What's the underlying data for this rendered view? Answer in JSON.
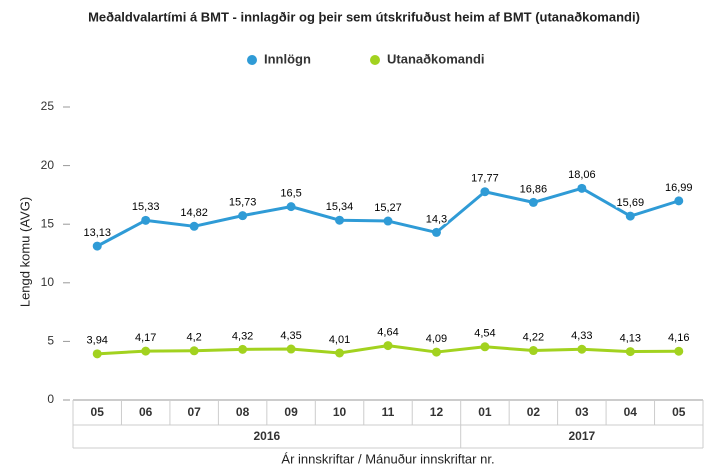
{
  "chart_data": {
    "type": "line",
    "title": "Meðaldvalartími á BMT - innlagðir og þeir sem útskrifuðust heim af BMT (utanaðkomandi)",
    "ylabel": "Lengd komu (AVG)",
    "xlabel": "Ár innskriftar / Mánuður innskriftar nr.",
    "categories": [
      "05",
      "06",
      "07",
      "08",
      "09",
      "10",
      "11",
      "12",
      "01",
      "02",
      "03",
      "04",
      "05"
    ],
    "category_groups": [
      "2016",
      "2016",
      "2016",
      "2016",
      "2016",
      "2016",
      "2016",
      "2016",
      "2017",
      "2017",
      "2017",
      "2017",
      "2017"
    ],
    "series": [
      {
        "name": "Innlögn",
        "color": "#2f9bd6",
        "values": [
          13.13,
          15.33,
          14.82,
          15.73,
          16.5,
          15.34,
          15.27,
          14.3,
          17.77,
          16.86,
          18.06,
          15.69,
          16.99
        ],
        "value_labels": [
          "13,13",
          "15,33",
          "14,82",
          "15,73",
          "16,5",
          "15,34",
          "15,27",
          "14,3",
          "17,77",
          "16,86",
          "18,06",
          "15,69",
          "16,99"
        ]
      },
      {
        "name": "Utanaðkomandi",
        "color": "#a2d21f",
        "values": [
          3.94,
          4.17,
          4.2,
          4.32,
          4.35,
          4.01,
          4.64,
          4.09,
          4.54,
          4.22,
          4.33,
          4.13,
          4.16
        ],
        "value_labels": [
          "3,94",
          "4,17",
          "4,2",
          "4,32",
          "4,35",
          "4,01",
          "4,64",
          "4,09",
          "4,54",
          "4,22",
          "4,33",
          "4,13",
          "4,16"
        ]
      }
    ],
    "ylim": [
      0,
      25
    ],
    "yticks": [
      0,
      5,
      10,
      15,
      20,
      25
    ],
    "legend": "top"
  }
}
